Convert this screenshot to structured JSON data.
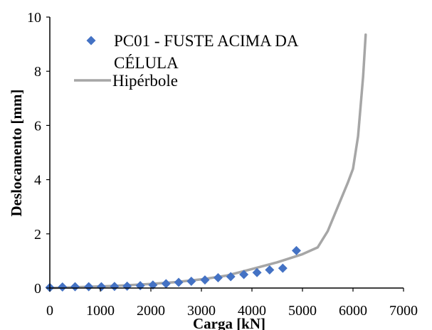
{
  "chart_data": {
    "type": "scatter",
    "xlabel": "Carga [kN]",
    "ylabel": "Deslocamento [mm]",
    "xlim": [
      0,
      7000
    ],
    "ylim": [
      0,
      10
    ],
    "xticks": [
      "0",
      "1000",
      "2000",
      "3000",
      "4000",
      "5000",
      "6000",
      "7000"
    ],
    "yticks": [
      "0",
      "2",
      "4",
      "6",
      "8",
      "10"
    ],
    "grid": false,
    "legend_position": "top-left",
    "series": [
      {
        "name": "PC01 - FUSTE ACIMA DA CÉLULA",
        "kind": "scatter",
        "color": "#4472C4",
        "marker": "diamond",
        "x": [
          0,
          250,
          500,
          770,
          1020,
          1280,
          1530,
          1790,
          2040,
          2300,
          2550,
          2800,
          3070,
          3330,
          3580,
          3840,
          4100,
          4350,
          4610,
          4880
        ],
        "y": [
          0.02,
          0.04,
          0.05,
          0.05,
          0.05,
          0.06,
          0.07,
          0.09,
          0.11,
          0.16,
          0.21,
          0.25,
          0.3,
          0.38,
          0.42,
          0.5,
          0.57,
          0.67,
          0.73,
          1.38
        ]
      },
      {
        "name": "Hipérbole",
        "kind": "line",
        "color": "#A6A6A6",
        "x": [
          0,
          500,
          1000,
          1500,
          2000,
          2500,
          3000,
          3500,
          4000,
          4500,
          5000,
          5300,
          5500,
          5700,
          5900,
          6000,
          6100,
          6200,
          6250
        ],
        "y": [
          0.0,
          0.03,
          0.06,
          0.1,
          0.15,
          0.22,
          0.32,
          0.46,
          0.7,
          0.95,
          1.25,
          1.5,
          2.1,
          3.0,
          3.9,
          4.4,
          5.6,
          7.8,
          9.35
        ]
      }
    ]
  }
}
